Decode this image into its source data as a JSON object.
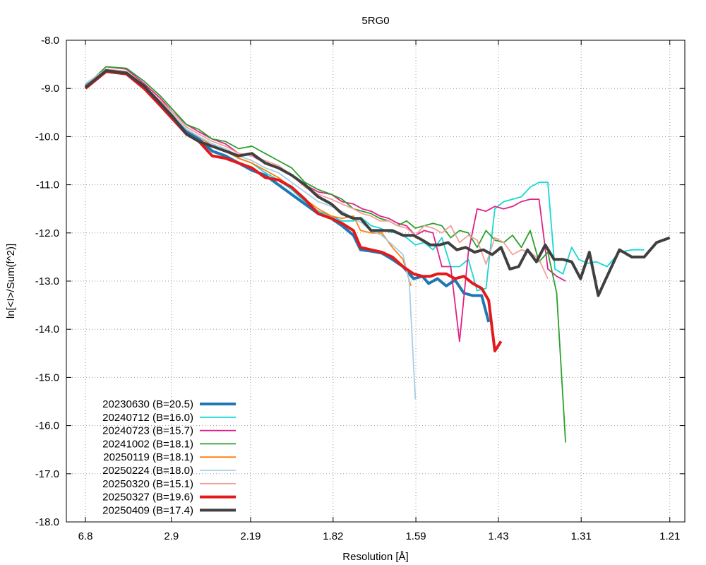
{
  "chart_data": {
    "type": "line",
    "title": "5RG0",
    "xlabel": "Resolution [Å]",
    "ylabel": "ln[<I>/Sum(f^2)]",
    "x_tick_labels": [
      "6.8",
      "2.9",
      "2.19",
      "1.82",
      "1.59",
      "1.43",
      "1.31",
      "1.21"
    ],
    "x_tick_values": [
      0.0216,
      0.1189,
      0.2085,
      0.3019,
      0.3956,
      0.489,
      0.5827,
      0.683
    ],
    "x_axis_note": "x is 1/d^2 in Å^-2; tick labels show resolution d in Å",
    "xlim": [
      0,
      0.7
    ],
    "ylim": [
      -18,
      -8
    ],
    "yticks": [
      -8,
      -9,
      -10,
      -11,
      -12,
      -13,
      -14,
      -15,
      -16,
      -17,
      -18
    ],
    "y_tick_labels": [
      "-8.0",
      "-9.0",
      "-10.0",
      "-11.0",
      "-12.0",
      "-13.0",
      "-14.0",
      "-15.0",
      "-16.0",
      "-17.0",
      "-18.0"
    ],
    "grid": true,
    "legend_position": "bottom-left",
    "series": [
      {
        "name": "20230630 (B=20.5)",
        "color": "#1f77b4",
        "width": 4,
        "x": [
          0.0216,
          0.045,
          0.068,
          0.088,
          0.106,
          0.121,
          0.136,
          0.15,
          0.165,
          0.18,
          0.195,
          0.21,
          0.225,
          0.24,
          0.255,
          0.27,
          0.285,
          0.3,
          0.312,
          0.325,
          0.333,
          0.345,
          0.357,
          0.369,
          0.381,
          0.393,
          0.403,
          0.41,
          0.42,
          0.43,
          0.44,
          0.45,
          0.46,
          0.47,
          0.478
        ],
        "y": [
          -8.95,
          -8.65,
          -8.7,
          -9.0,
          -9.3,
          -9.6,
          -9.9,
          -10.05,
          -10.3,
          -10.4,
          -10.55,
          -10.7,
          -10.8,
          -11.0,
          -11.2,
          -11.4,
          -11.6,
          -11.7,
          -11.85,
          -12.05,
          -12.35,
          -12.38,
          -12.42,
          -12.55,
          -12.7,
          -12.95,
          -12.9,
          -13.05,
          -12.95,
          -13.1,
          -12.98,
          -13.25,
          -13.3,
          -13.3,
          -13.85
        ]
      },
      {
        "name": "20240712 (B=16.0)",
        "color": "#17d7d7",
        "width": 1.8,
        "x": [
          0.0216,
          0.045,
          0.068,
          0.088,
          0.106,
          0.121,
          0.136,
          0.15,
          0.165,
          0.18,
          0.195,
          0.21,
          0.225,
          0.24,
          0.255,
          0.27,
          0.285,
          0.3,
          0.312,
          0.325,
          0.335,
          0.345,
          0.355,
          0.365,
          0.375,
          0.385,
          0.395,
          0.405,
          0.415,
          0.425,
          0.435,
          0.445,
          0.455,
          0.465,
          0.475,
          0.485,
          0.495,
          0.505,
          0.515,
          0.525,
          0.535,
          0.545,
          0.553,
          0.562,
          0.572,
          0.58,
          0.59,
          0.6,
          0.612,
          0.626,
          0.64,
          0.654
        ],
        "y": [
          -8.95,
          -8.62,
          -8.65,
          -8.95,
          -9.28,
          -9.55,
          -9.85,
          -10.0,
          -10.2,
          -10.3,
          -10.45,
          -10.55,
          -10.75,
          -10.9,
          -11.1,
          -11.35,
          -11.55,
          -11.65,
          -11.75,
          -11.75,
          -11.7,
          -11.85,
          -11.9,
          -11.98,
          -12.0,
          -12.1,
          -12.25,
          -12.2,
          -12.35,
          -12.1,
          -12.7,
          -12.7,
          -12.55,
          -13.2,
          -13.15,
          -11.5,
          -11.35,
          -11.3,
          -11.25,
          -11.05,
          -10.95,
          -10.95,
          -12.75,
          -12.85,
          -12.3,
          -12.55,
          -12.63,
          -12.6,
          -12.7,
          -12.4,
          -12.35,
          -12.35
        ]
      },
      {
        "name": "20240723 (B=15.7)",
        "color": "#e0218a",
        "width": 1.8,
        "x": [
          0.0216,
          0.045,
          0.068,
          0.088,
          0.106,
          0.121,
          0.136,
          0.15,
          0.165,
          0.18,
          0.195,
          0.21,
          0.225,
          0.24,
          0.255,
          0.27,
          0.285,
          0.3,
          0.312,
          0.325,
          0.335,
          0.345,
          0.355,
          0.365,
          0.375,
          0.385,
          0.395,
          0.405,
          0.415,
          0.425,
          0.435,
          0.445,
          0.455,
          0.465,
          0.475,
          0.485,
          0.495,
          0.505,
          0.515,
          0.525,
          0.535,
          0.545,
          0.555,
          0.565
        ],
        "y": [
          -8.95,
          -8.55,
          -8.6,
          -8.9,
          -9.2,
          -9.5,
          -9.75,
          -9.9,
          -10.05,
          -10.15,
          -10.35,
          -10.4,
          -10.55,
          -10.65,
          -10.8,
          -11.0,
          -11.15,
          -11.2,
          -11.35,
          -11.4,
          -11.5,
          -11.55,
          -11.65,
          -11.7,
          -11.8,
          -11.85,
          -12.05,
          -11.95,
          -12.0,
          -12.7,
          -12.7,
          -14.25,
          -12.4,
          -11.5,
          -11.55,
          -11.45,
          -11.5,
          -11.45,
          -11.35,
          -11.3,
          -11.3,
          -12.75,
          -12.9,
          -13.0
        ]
      },
      {
        "name": "20241002 (B=18.1)",
        "color": "#2ca02c",
        "width": 1.8,
        "x": [
          0.0216,
          0.045,
          0.068,
          0.088,
          0.106,
          0.121,
          0.136,
          0.15,
          0.165,
          0.18,
          0.195,
          0.21,
          0.225,
          0.24,
          0.255,
          0.27,
          0.285,
          0.3,
          0.312,
          0.325,
          0.335,
          0.345,
          0.355,
          0.365,
          0.375,
          0.385,
          0.395,
          0.405,
          0.415,
          0.425,
          0.435,
          0.445,
          0.455,
          0.465,
          0.475,
          0.485,
          0.495,
          0.505,
          0.515,
          0.525,
          0.535,
          0.545,
          0.555,
          0.565
        ],
        "y": [
          -8.95,
          -8.55,
          -8.58,
          -8.85,
          -9.15,
          -9.45,
          -9.75,
          -9.85,
          -10.05,
          -10.1,
          -10.25,
          -10.2,
          -10.35,
          -10.5,
          -10.65,
          -10.95,
          -11.1,
          -11.2,
          -11.3,
          -11.5,
          -11.55,
          -11.6,
          -11.7,
          -11.75,
          -11.85,
          -11.75,
          -11.9,
          -11.85,
          -11.8,
          -11.85,
          -12.1,
          -11.95,
          -12.0,
          -12.3,
          -11.95,
          -12.15,
          -12.2,
          -12.05,
          -12.3,
          -11.95,
          -12.6,
          -12.4,
          -13.25,
          -16.35
        ]
      },
      {
        "name": "20250119 (B=18.1)",
        "color": "#ff7f0e",
        "width": 1.8,
        "x": [
          0.0216,
          0.045,
          0.068,
          0.088,
          0.106,
          0.121,
          0.136,
          0.15,
          0.165,
          0.18,
          0.195,
          0.21,
          0.225,
          0.24,
          0.255,
          0.27,
          0.285,
          0.3,
          0.312,
          0.325,
          0.333,
          0.345,
          0.357,
          0.369,
          0.381,
          0.39
        ],
        "y": [
          -8.95,
          -8.63,
          -8.68,
          -8.98,
          -9.28,
          -9.55,
          -9.85,
          -10.0,
          -10.2,
          -10.3,
          -10.45,
          -10.55,
          -10.7,
          -10.85,
          -11.05,
          -11.3,
          -11.5,
          -11.65,
          -11.7,
          -11.65,
          -11.95,
          -12.0,
          -12.0,
          -12.3,
          -12.55,
          -13.1
        ]
      },
      {
        "name": "20250224 (B=18.0)",
        "color": "#a6cee3",
        "width": 1.8,
        "x": [
          0.0216,
          0.045,
          0.068,
          0.088,
          0.106,
          0.121,
          0.136,
          0.15,
          0.165,
          0.18,
          0.195,
          0.21,
          0.225,
          0.24,
          0.255,
          0.27,
          0.285,
          0.3,
          0.312,
          0.325,
          0.335,
          0.345,
          0.357,
          0.369,
          0.381,
          0.388,
          0.395
        ],
        "y": [
          -8.9,
          -8.6,
          -8.65,
          -8.95,
          -9.25,
          -9.55,
          -9.85,
          -10.0,
          -10.15,
          -10.25,
          -10.4,
          -10.5,
          -10.65,
          -10.75,
          -10.95,
          -11.15,
          -11.35,
          -11.45,
          -11.55,
          -11.7,
          -11.8,
          -11.95,
          -12.05,
          -12.25,
          -12.45,
          -13.0,
          -15.45
        ]
      },
      {
        "name": "20250320 (B=15.1)",
        "color": "#f4a09c",
        "width": 1.8,
        "x": [
          0.0216,
          0.045,
          0.068,
          0.088,
          0.106,
          0.121,
          0.136,
          0.15,
          0.165,
          0.18,
          0.195,
          0.21,
          0.225,
          0.24,
          0.255,
          0.27,
          0.285,
          0.3,
          0.312,
          0.325,
          0.335,
          0.345,
          0.355,
          0.365,
          0.375,
          0.385,
          0.395,
          0.405,
          0.415,
          0.425,
          0.435,
          0.445,
          0.455,
          0.465,
          0.475,
          0.485,
          0.495,
          0.505,
          0.515,
          0.525,
          0.535,
          0.545
        ],
        "y": [
          -8.95,
          -8.6,
          -8.65,
          -8.95,
          -9.25,
          -9.5,
          -9.8,
          -9.95,
          -10.1,
          -10.2,
          -10.35,
          -10.4,
          -10.5,
          -10.6,
          -10.8,
          -11.05,
          -11.2,
          -11.3,
          -11.4,
          -11.5,
          -11.6,
          -11.65,
          -11.75,
          -11.75,
          -11.85,
          -11.9,
          -12.05,
          -11.85,
          -11.9,
          -12.0,
          -11.85,
          -12.2,
          -12.05,
          -12.15,
          -12.65,
          -12.1,
          -12.2,
          -12.45,
          -12.35,
          -12.4,
          -12.55,
          -12.95
        ]
      },
      {
        "name": "20250327 (B=19.6)",
        "color": "#e31a1c",
        "width": 4,
        "x": [
          0.0216,
          0.045,
          0.068,
          0.088,
          0.106,
          0.121,
          0.136,
          0.15,
          0.165,
          0.18,
          0.195,
          0.21,
          0.225,
          0.24,
          0.255,
          0.27,
          0.285,
          0.3,
          0.312,
          0.325,
          0.333,
          0.345,
          0.357,
          0.369,
          0.381,
          0.393,
          0.403,
          0.412,
          0.42,
          0.43,
          0.44,
          0.45,
          0.46,
          0.47,
          0.478,
          0.485,
          0.492
        ],
        "y": [
          -9.0,
          -8.65,
          -8.7,
          -9.0,
          -9.35,
          -9.65,
          -9.95,
          -10.1,
          -10.4,
          -10.45,
          -10.55,
          -10.65,
          -10.85,
          -10.9,
          -11.05,
          -11.3,
          -11.6,
          -11.7,
          -11.8,
          -11.95,
          -12.3,
          -12.35,
          -12.4,
          -12.5,
          -12.7,
          -12.85,
          -12.9,
          -12.9,
          -12.85,
          -12.85,
          -12.95,
          -12.9,
          -13.05,
          -13.15,
          -13.4,
          -14.45,
          -14.25
        ]
      },
      {
        "name": "20250409 (B=17.4)",
        "color": "#404040",
        "width": 4,
        "x": [
          0.0216,
          0.045,
          0.068,
          0.088,
          0.106,
          0.121,
          0.136,
          0.15,
          0.165,
          0.18,
          0.195,
          0.21,
          0.225,
          0.24,
          0.255,
          0.27,
          0.285,
          0.3,
          0.312,
          0.325,
          0.333,
          0.345,
          0.357,
          0.369,
          0.381,
          0.393,
          0.403,
          0.412,
          0.422,
          0.432,
          0.442,
          0.452,
          0.462,
          0.472,
          0.482,
          0.492,
          0.502,
          0.512,
          0.522,
          0.532,
          0.542,
          0.552,
          0.562,
          0.572,
          0.582,
          0.592,
          0.602,
          0.612,
          0.626,
          0.64,
          0.654,
          0.668,
          0.683
        ],
        "y": [
          -8.98,
          -8.63,
          -8.68,
          -8.95,
          -9.3,
          -9.6,
          -9.95,
          -10.1,
          -10.2,
          -10.3,
          -10.4,
          -10.35,
          -10.55,
          -10.65,
          -10.8,
          -11.0,
          -11.25,
          -11.4,
          -11.6,
          -11.7,
          -11.7,
          -11.95,
          -11.95,
          -11.95,
          -12.05,
          -12.05,
          -12.15,
          -12.25,
          -12.25,
          -12.2,
          -12.35,
          -12.3,
          -12.4,
          -12.35,
          -12.45,
          -12.3,
          -12.75,
          -12.7,
          -12.35,
          -12.6,
          -12.25,
          -12.55,
          -12.55,
          -12.6,
          -12.95,
          -12.4,
          -13.3,
          -12.9,
          -12.35,
          -12.5,
          -12.5,
          -12.2,
          -12.1
        ]
      }
    ]
  }
}
